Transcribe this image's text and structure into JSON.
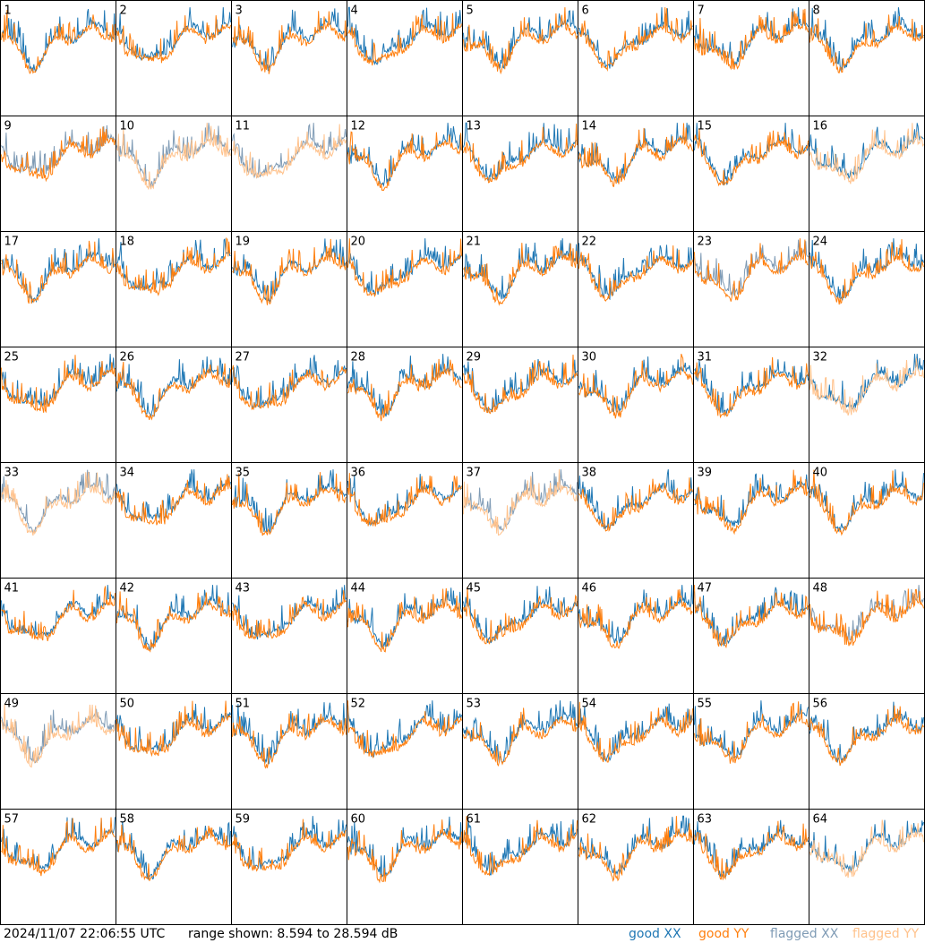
{
  "footer": {
    "timestamp": "2024/11/07 22:06:55 UTC",
    "range_label": "range shown: 8.594 to 28.594 dB"
  },
  "legend": {
    "good_xx": "good XX",
    "good_yy": "good YY",
    "flagged_xx": "flagged XX",
    "flagged_yy": "flagged YY"
  },
  "colors": {
    "good_xx": "#1f77b4",
    "good_yy": "#ff7f0e",
    "flagged_xx": "#7f9bb5",
    "flagged_yy": "#ffc28c",
    "grid": "#000000",
    "background": "#ffffff"
  },
  "chart_data": {
    "type": "line",
    "panel_grid": "8x8",
    "ylim": [
      8.594,
      28.594
    ],
    "yunit": "dB",
    "panels": [
      {
        "id": "1",
        "xx": "good",
        "yy": "good"
      },
      {
        "id": "2",
        "xx": "good",
        "yy": "good"
      },
      {
        "id": "3",
        "xx": "good",
        "yy": "good"
      },
      {
        "id": "4",
        "xx": "good",
        "yy": "good"
      },
      {
        "id": "5",
        "xx": "good",
        "yy": "good"
      },
      {
        "id": "6",
        "xx": "good",
        "yy": "good"
      },
      {
        "id": "7",
        "xx": "good",
        "yy": "good"
      },
      {
        "id": "8",
        "xx": "good",
        "yy": "good"
      },
      {
        "id": "9",
        "xx": "flagged",
        "yy": "good"
      },
      {
        "id": "10",
        "xx": "flagged",
        "yy": "flagged"
      },
      {
        "id": "11",
        "xx": "flagged",
        "yy": "flagged"
      },
      {
        "id": "12",
        "xx": "good",
        "yy": "good"
      },
      {
        "id": "13",
        "xx": "good",
        "yy": "good"
      },
      {
        "id": "14",
        "xx": "good",
        "yy": "good"
      },
      {
        "id": "15",
        "xx": "good",
        "yy": "good"
      },
      {
        "id": "16",
        "xx": "good",
        "yy": "flagged"
      },
      {
        "id": "17",
        "xx": "good",
        "yy": "good"
      },
      {
        "id": "18",
        "xx": "good",
        "yy": "good"
      },
      {
        "id": "19",
        "xx": "good",
        "yy": "good"
      },
      {
        "id": "20",
        "xx": "good",
        "yy": "good"
      },
      {
        "id": "21",
        "xx": "good",
        "yy": "good"
      },
      {
        "id": "22",
        "xx": "good",
        "yy": "good"
      },
      {
        "id": "23",
        "xx": "flagged",
        "yy": "good"
      },
      {
        "id": "24",
        "xx": "good",
        "yy": "good"
      },
      {
        "id": "25",
        "xx": "good",
        "yy": "good"
      },
      {
        "id": "26",
        "xx": "good",
        "yy": "good"
      },
      {
        "id": "27",
        "xx": "good",
        "yy": "good"
      },
      {
        "id": "28",
        "xx": "good",
        "yy": "good"
      },
      {
        "id": "29",
        "xx": "good",
        "yy": "good"
      },
      {
        "id": "30",
        "xx": "good",
        "yy": "good"
      },
      {
        "id": "31",
        "xx": "good",
        "yy": "good"
      },
      {
        "id": "32",
        "xx": "good",
        "yy": "flagged"
      },
      {
        "id": "33",
        "xx": "flagged",
        "yy": "flagged"
      },
      {
        "id": "34",
        "xx": "good",
        "yy": "good"
      },
      {
        "id": "35",
        "xx": "good",
        "yy": "good"
      },
      {
        "id": "36",
        "xx": "good",
        "yy": "good"
      },
      {
        "id": "37",
        "xx": "flagged",
        "yy": "flagged"
      },
      {
        "id": "38",
        "xx": "good",
        "yy": "good"
      },
      {
        "id": "39",
        "xx": "good",
        "yy": "good"
      },
      {
        "id": "40",
        "xx": "good",
        "yy": "good"
      },
      {
        "id": "41",
        "xx": "good",
        "yy": "good"
      },
      {
        "id": "42",
        "xx": "good",
        "yy": "good"
      },
      {
        "id": "43",
        "xx": "good",
        "yy": "good"
      },
      {
        "id": "44",
        "xx": "good",
        "yy": "good"
      },
      {
        "id": "45",
        "xx": "good",
        "yy": "good"
      },
      {
        "id": "46",
        "xx": "good",
        "yy": "good"
      },
      {
        "id": "47",
        "xx": "good",
        "yy": "good"
      },
      {
        "id": "48",
        "xx": "flagged",
        "yy": "good"
      },
      {
        "id": "49",
        "xx": "flagged",
        "yy": "flagged"
      },
      {
        "id": "50",
        "xx": "good",
        "yy": "good"
      },
      {
        "id": "51",
        "xx": "good",
        "yy": "good"
      },
      {
        "id": "52",
        "xx": "good",
        "yy": "good"
      },
      {
        "id": "53",
        "xx": "good",
        "yy": "good"
      },
      {
        "id": "54",
        "xx": "good",
        "yy": "good"
      },
      {
        "id": "55",
        "xx": "good",
        "yy": "good"
      },
      {
        "id": "56",
        "xx": "good",
        "yy": "good"
      },
      {
        "id": "57",
        "xx": "good",
        "yy": "good"
      },
      {
        "id": "58",
        "xx": "good",
        "yy": "good"
      },
      {
        "id": "59",
        "xx": "good",
        "yy": "good"
      },
      {
        "id": "60",
        "xx": "good",
        "yy": "good"
      },
      {
        "id": "61",
        "xx": "good",
        "yy": "good"
      },
      {
        "id": "62",
        "xx": "good",
        "yy": "good"
      },
      {
        "id": "63",
        "xx": "good",
        "yy": "good"
      },
      {
        "id": "64",
        "xx": "good",
        "yy": "flagged"
      }
    ]
  }
}
